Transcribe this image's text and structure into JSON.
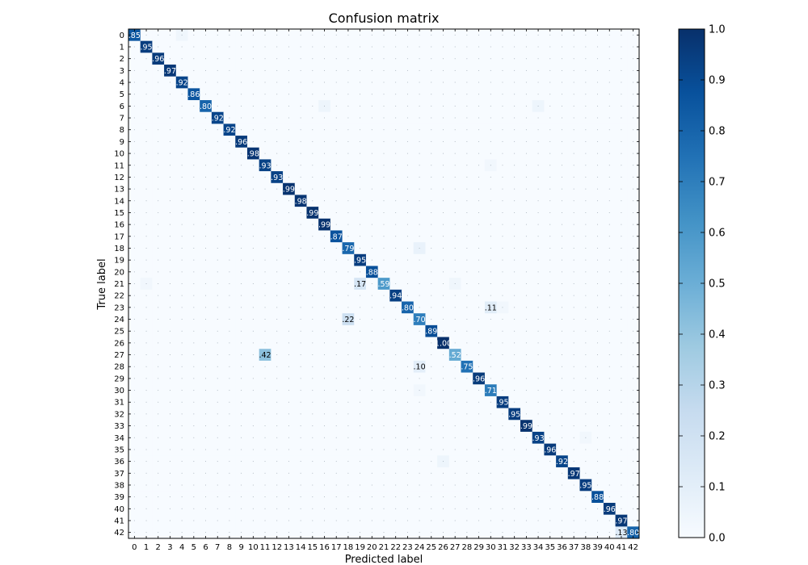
{
  "chart_data": {
    "type": "heatmap",
    "title": "Confusion matrix",
    "xlabel": "Predicted label",
    "ylabel": "True label",
    "n_classes": 43,
    "x_ticks": [
      "0",
      "1",
      "2",
      "3",
      "4",
      "5",
      "6",
      "7",
      "8",
      "9",
      "10",
      "11",
      "12",
      "13",
      "14",
      "15",
      "16",
      "17",
      "18",
      "19",
      "20",
      "21",
      "22",
      "23",
      "24",
      "25",
      "26",
      "27",
      "28",
      "29",
      "30",
      "31",
      "32",
      "33",
      "34",
      "35",
      "36",
      "37",
      "38",
      "39",
      "40",
      "41",
      "42"
    ],
    "y_ticks": [
      "0",
      "1",
      "2",
      "3",
      "4",
      "5",
      "6",
      "7",
      "8",
      "9",
      "10",
      "11",
      "12",
      "13",
      "14",
      "15",
      "16",
      "17",
      "18",
      "19",
      "20",
      "21",
      "22",
      "23",
      "24",
      "25",
      "26",
      "27",
      "28",
      "29",
      "30",
      "31",
      "32",
      "33",
      "34",
      "35",
      "36",
      "37",
      "38",
      "39",
      "40",
      "41",
      "42"
    ],
    "diagonal": [
      0.85,
      0.95,
      0.96,
      0.97,
      0.92,
      0.86,
      0.8,
      0.92,
      0.92,
      0.96,
      0.98,
      0.93,
      0.93,
      0.99,
      0.98,
      0.99,
      0.99,
      0.87,
      0.79,
      0.95,
      0.88,
      0.59,
      0.94,
      0.8,
      0.7,
      0.89,
      1.0,
      0.52,
      0.75,
      0.96,
      0.71,
      0.95,
      0.95,
      0.99,
      0.93,
      0.96,
      0.92,
      0.97,
      0.95,
      0.88,
      0.96,
      0.97,
      0.8
    ],
    "diagonal_labels": [
      ".85",
      ".95",
      ".96",
      ".97",
      ".92",
      ".86",
      ".80",
      ".92",
      ".92",
      ".96",
      ".98",
      ".93",
      ".93",
      ".99",
      ".98",
      ".99",
      ".99",
      ".87",
      ".79",
      ".95",
      ".88",
      ".59",
      ".94",
      ".80",
      ".70",
      ".89",
      "1.00",
      ".52",
      ".75",
      ".96",
      ".71",
      ".95",
      ".95",
      ".99",
      ".93",
      ".96",
      ".92",
      ".97",
      ".95",
      ".88",
      ".96",
      ".97",
      ".80"
    ],
    "off_diagonal": [
      {
        "row": 21,
        "col": 19,
        "value": 0.17,
        "label": ".17"
      },
      {
        "row": 23,
        "col": 30,
        "value": 0.11,
        "label": ".11"
      },
      {
        "row": 24,
        "col": 18,
        "value": 0.22,
        "label": ".22"
      },
      {
        "row": 27,
        "col": 11,
        "value": 0.42,
        "label": ".42"
      },
      {
        "row": 28,
        "col": 24,
        "value": 0.1,
        "label": ".10"
      },
      {
        "row": 42,
        "col": 41,
        "value": 0.13,
        "label": ".13"
      },
      {
        "row": 0,
        "col": 4,
        "value": 0.04
      },
      {
        "row": 6,
        "col": 16,
        "value": 0.05
      },
      {
        "row": 6,
        "col": 34,
        "value": 0.05
      },
      {
        "row": 18,
        "col": 24,
        "value": 0.07
      },
      {
        "row": 21,
        "col": 1,
        "value": 0.03
      },
      {
        "row": 21,
        "col": 27,
        "value": 0.04
      },
      {
        "row": 23,
        "col": 31,
        "value": 0.03
      },
      {
        "row": 30,
        "col": 24,
        "value": 0.03
      },
      {
        "row": 36,
        "col": 26,
        "value": 0.05
      },
      {
        "row": 11,
        "col": 30,
        "value": 0.03
      },
      {
        "row": 34,
        "col": 38,
        "value": 0.03
      }
    ],
    "colorbar": {
      "min": 0.0,
      "max": 1.0,
      "ticks": [
        "0.0",
        "0.1",
        "0.2",
        "0.3",
        "0.4",
        "0.5",
        "0.6",
        "0.7",
        "0.8",
        "0.9",
        "1.0"
      ]
    },
    "colormap": [
      "#f7fbff",
      "#deebf7",
      "#c6dbef",
      "#9ecae1",
      "#6baed6",
      "#4292c6",
      "#2171b5",
      "#08519c",
      "#08306b"
    ]
  }
}
